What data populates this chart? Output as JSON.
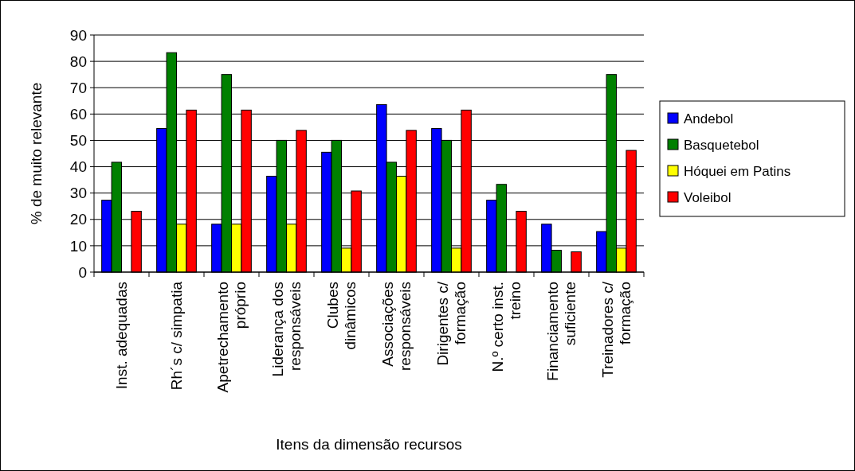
{
  "chart_data": {
    "type": "bar",
    "xlabel": "Itens da dimensão recursos",
    "ylabel": "% de muito relevante",
    "categories": [
      "Inst. adequadas",
      "Rh´s c/ simpatia",
      "Apetrechamento\npróprio",
      "Liderança dos\nresponsáveis",
      "Clubes\ndinâmicos",
      "Associações\nresponsáveis",
      "Dirigentes c/\nformação",
      "N.º certo inst.\ntreino",
      "Financiamento\nsuficiente",
      "Treinadores c/\nformação"
    ],
    "series": [
      {
        "name": "Andebol",
        "color": "#0000ff",
        "values": [
          27.3,
          54.5,
          18.2,
          36.4,
          45.5,
          63.6,
          54.5,
          27.3,
          18.2,
          15.4
        ]
      },
      {
        "name": "Basquetebol",
        "color": "#008000",
        "values": [
          41.7,
          83.3,
          75,
          50,
          50,
          41.7,
          50,
          33.3,
          8.3,
          75
        ]
      },
      {
        "name": "Hóquei em Patins",
        "color": "#ffff00",
        "values": [
          0,
          18.2,
          18.2,
          18.2,
          9.1,
          36.4,
          9.1,
          0,
          0,
          9.1
        ]
      },
      {
        "name": "Voleibol",
        "color": "#ff0000",
        "values": [
          23.1,
          61.5,
          61.5,
          53.8,
          30.8,
          53.8,
          61.5,
          23.1,
          7.7,
          46.2
        ]
      }
    ],
    "ylim": [
      0,
      90
    ],
    "yticks": [
      0,
      10,
      20,
      30,
      40,
      50,
      60,
      70,
      80,
      90
    ],
    "grid": "y",
    "legend": "right"
  }
}
